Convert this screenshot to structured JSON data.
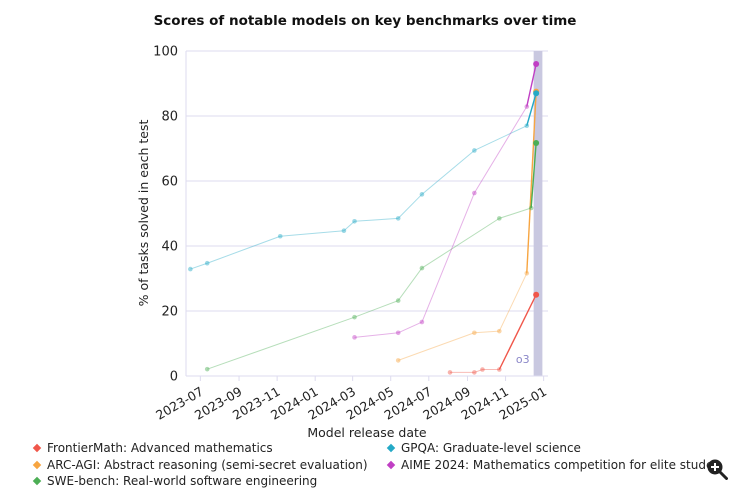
{
  "chart_data": {
    "type": "line",
    "title": "Scores of notable models on key benchmarks over time",
    "xlabel": "Model release date",
    "ylabel": "% of tasks solved in each test",
    "ylim": [
      0,
      100
    ],
    "xlim": [
      "2023-06-08",
      "2025-01-08"
    ],
    "yticks": [
      0,
      20,
      40,
      60,
      80,
      100
    ],
    "xticks": [
      "2023-07",
      "2023-09",
      "2023-11",
      "2024-01",
      "2024-03",
      "2024-05",
      "2024-07",
      "2024-09",
      "2024-11",
      "2025-01"
    ],
    "grid": true,
    "legend_position": "bottom",
    "highlight": {
      "label": "o3",
      "from": "2024-12-16",
      "to": "2024-12-30",
      "color": "#c9c8e0"
    },
    "series": [
      {
        "name": "FrontierMath: Advanced mathematics",
        "color": "#f0564a",
        "points": [
          [
            "2024-08-04",
            1.1
          ],
          [
            "2024-09-12",
            1.1
          ],
          [
            "2024-09-25",
            2.0
          ],
          [
            "2024-10-22",
            2.0
          ],
          [
            "2024-12-20",
            25.0
          ]
        ]
      },
      {
        "name": "ARC-AGI: Abstract reasoning (semi-secret evaluation)",
        "color": "#f7a541",
        "points": [
          [
            "2024-05-13",
            4.8
          ],
          [
            "2024-09-12",
            13.3
          ],
          [
            "2024-10-22",
            13.8
          ],
          [
            "2024-12-05",
            31.6
          ],
          [
            "2024-12-20",
            87.5
          ]
        ]
      },
      {
        "name": "SWE-bench: Real-world software engineering",
        "color": "#4cae55",
        "points": [
          [
            "2023-07-12",
            2.1
          ],
          [
            "2024-03-04",
            18.1
          ],
          [
            "2024-05-13",
            23.2
          ],
          [
            "2024-06-20",
            33.2
          ],
          [
            "2024-10-22",
            48.5
          ],
          [
            "2024-12-12",
            51.7
          ],
          [
            "2024-12-20",
            71.7
          ]
        ]
      },
      {
        "name": "GPQA: Graduate-level science",
        "color": "#24a9c6",
        "points": [
          [
            "2023-06-15",
            32.9
          ],
          [
            "2023-07-12",
            34.7
          ],
          [
            "2023-11-06",
            43.0
          ],
          [
            "2024-02-16",
            44.7
          ],
          [
            "2024-03-04",
            47.6
          ],
          [
            "2024-05-13",
            48.5
          ],
          [
            "2024-06-20",
            55.9
          ],
          [
            "2024-09-12",
            69.4
          ],
          [
            "2024-12-05",
            77.0
          ],
          [
            "2024-12-20",
            87.0
          ]
        ]
      },
      {
        "name": "AIME 2024: Mathematics competition for elite students",
        "color": "#c03fc4",
        "points": [
          [
            "2024-03-04",
            11.9
          ],
          [
            "2024-05-13",
            13.3
          ],
          [
            "2024-06-20",
            16.6
          ],
          [
            "2024-09-12",
            56.3
          ],
          [
            "2024-12-05",
            82.9
          ],
          [
            "2024-12-20",
            96.0
          ]
        ]
      }
    ]
  },
  "legend_display": [
    "FrontierMath: Advanced mathematics",
    "ARC-AGI: Abstract reasoning (semi-secret evaluation)",
    "SWE-bench: Real-world software engineering",
    "GPQA: Graduate-level science",
    "AIME 2024: Mathematics competition for elite stude"
  ],
  "icons": {
    "zoom": "zoom-in-icon"
  }
}
